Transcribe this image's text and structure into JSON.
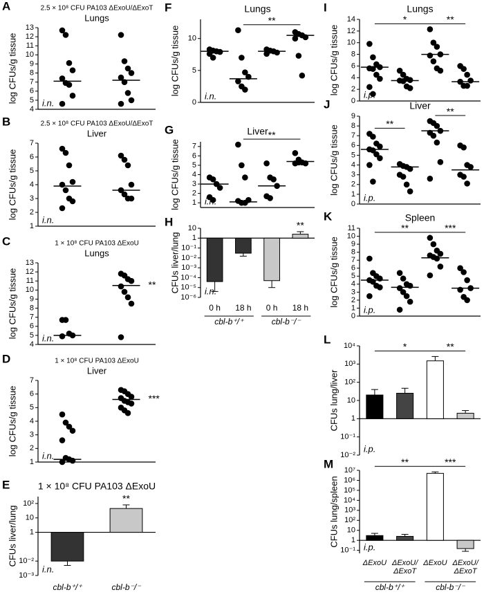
{
  "chart_data": [
    {
      "panel": "A",
      "type": "dot",
      "title": "2.5 × 10⁸ CFU PA103 ΔExoU/ΔExoT",
      "subtitle": "Lungs",
      "ylabel": "log CFUs/g tissue",
      "note": "i.n.",
      "ylim": [
        4,
        13
      ],
      "yticks": [
        4,
        5,
        6,
        7,
        8,
        9,
        10,
        11,
        12,
        13
      ],
      "series": [
        {
          "values": [
            12.7,
            12.2,
            9.1,
            8.3,
            7.4,
            6.9,
            6.7,
            5.5,
            4.6
          ],
          "median": 7.1
        },
        {
          "values": [
            12.2,
            9.3,
            8.5,
            8.0,
            7.5,
            7.0,
            5.8,
            5.0,
            4.6
          ],
          "median": 7.2
        }
      ],
      "annotations": []
    },
    {
      "panel": "B",
      "type": "dot",
      "title": "2.5 × 10⁸ CFU PA103 ΔExoU/ΔExoT",
      "subtitle": "Liver",
      "ylabel": "log CFUs/g tissue",
      "note": "i.n.",
      "ylim": [
        1,
        7
      ],
      "yticks": [
        1,
        2,
        3,
        4,
        5,
        6,
        7
      ],
      "series": [
        {
          "values": [
            6.6,
            6.3,
            5.4,
            4.2,
            4.0,
            3.6,
            3.0,
            2.8,
            2.3
          ],
          "median": 3.9
        },
        {
          "values": [
            6.1,
            5.8,
            5.4,
            4.0,
            3.6,
            3.3,
            3.0,
            3.0
          ],
          "median": 3.6
        }
      ],
      "annotations": []
    },
    {
      "panel": "C",
      "type": "dot",
      "title": "1 × 10⁸ CFU PA103 ΔExoU",
      "subtitle": "Lungs",
      "ylabel": "log CFUs/g tissue",
      "note": "i.n.",
      "ylim": [
        4,
        13
      ],
      "yticks": [
        4,
        5,
        6,
        7,
        8,
        9,
        10,
        11,
        12,
        13
      ],
      "series": [
        {
          "values": [
            6.7,
            6.7,
            5.2,
            5.0,
            4.9
          ],
          "median": 5.0
        },
        {
          "values": [
            11.8,
            11.6,
            11.2,
            11.0,
            10.4,
            9.8,
            9.2,
            8.5,
            4.8
          ],
          "median": 10.5
        }
      ],
      "annotations": [
        "**"
      ]
    },
    {
      "panel": "D",
      "type": "dot",
      "title": "1 × 10⁸ CFU PA103 ΔExoU",
      "subtitle": "Liver",
      "ylabel": "log CFUs/g tissue",
      "note": "i.n.",
      "ylim": [
        1,
        7
      ],
      "yticks": [
        1,
        2,
        3,
        4,
        5,
        6,
        7
      ],
      "series": [
        {
          "values": [
            4.5,
            3.9,
            3.6,
            3.3,
            2.6,
            1.3,
            1.2,
            1.1,
            1.0
          ],
          "median": 1.2
        },
        {
          "values": [
            6.3,
            6.2,
            6.0,
            5.8,
            5.7,
            5.5,
            5.4,
            5.3,
            5.0,
            4.8,
            4.6
          ],
          "median": 5.6
        }
      ],
      "annotations": [
        "***"
      ]
    },
    {
      "panel": "E",
      "type": "bar",
      "title": "1 × 10⁸ CFU PA103 ΔExoU",
      "ylabel": "CFUs liver/lung",
      "note": "i.n.",
      "log": true,
      "ylim": [
        0.001,
        300
      ],
      "yticks": [
        {
          "value": 0.001,
          "label": "10⁻³"
        },
        {
          "value": 0.01,
          "label": "10⁻²"
        },
        1,
        10,
        {
          "value": 100,
          "label": "10²"
        }
      ],
      "categories": [
        "cbl-b⁺/⁺",
        "cbl-b⁻/⁻"
      ],
      "values": [
        0.01,
        45
      ],
      "errors": [
        0.005,
        35
      ],
      "colors": [
        "#333333",
        "#c8c8c8"
      ],
      "annotations": [
        "**"
      ]
    },
    {
      "panel": "F",
      "type": "dot",
      "title": "Lungs",
      "ylabel": "log CFUs/g tissue",
      "note": "i.n.",
      "ylim": [
        0,
        13
      ],
      "yticks": [
        0,
        5,
        10
      ],
      "series": [
        {
          "values": [
            8.3,
            8.1,
            8.0,
            7.9,
            7.6,
            7.0
          ],
          "median": 8.0
        },
        {
          "values": [
            11.3,
            7.0,
            4.7,
            4.0,
            3.3,
            2.5,
            2.0
          ],
          "median": 3.7
        },
        {
          "values": [
            8.3,
            8.1,
            8.0,
            7.8,
            7.6
          ],
          "median": 8.0
        },
        {
          "values": [
            11.0,
            10.7,
            10.5,
            10.2,
            10.0,
            7.3,
            4.2
          ],
          "median": 10.5
        }
      ],
      "annotations": [
        "**"
      ]
    },
    {
      "panel": "G",
      "type": "dot",
      "title": "Liver",
      "ylabel": "log CFUs/g tissue",
      "note": "i.n.",
      "ylim": [
        0.5,
        7.5
      ],
      "yticks": [
        1,
        2,
        3,
        4,
        5,
        6,
        7
      ],
      "series": [
        {
          "values": [
            3.7,
            3.5,
            3.0,
            2.6,
            1.6,
            1.3
          ],
          "median": 3.0
        },
        {
          "values": [
            7.2,
            5.0,
            3.7,
            1.3,
            1.2,
            1.0,
            1.0
          ],
          "median": 1.1
        },
        {
          "values": [
            5.2,
            3.7,
            3.5,
            2.8,
            1.7,
            1.5
          ],
          "median": 2.8
        },
        {
          "values": [
            6.3,
            5.6,
            5.3,
            5.2,
            5.2,
            5.3
          ],
          "median": 5.4
        }
      ],
      "annotations": [
        "**"
      ]
    },
    {
      "panel": "H",
      "type": "bar",
      "ylabel": "CFUs liver/lung",
      "note": "i.n.",
      "log": true,
      "ylim": [
        1e-06,
        10
      ],
      "yticks": [
        {
          "value": 1e-06,
          "label": "10⁻⁶"
        },
        {
          "value": 1e-05,
          "label": "10⁻⁵"
        },
        {
          "value": 0.0001,
          "label": "10⁻⁴"
        },
        {
          "value": 0.001,
          "label": "10⁻³"
        },
        {
          "value": 0.01,
          "label": "10⁻²"
        },
        {
          "value": 0.1,
          "label": "10⁻¹"
        },
        1,
        10
      ],
      "categories": [
        "0 h",
        "18 h",
        "0 h",
        "18 h"
      ],
      "groups": [
        "cbl-b⁺/⁺",
        "cbl-b⁻/⁻"
      ],
      "values": [
        4e-05,
        0.03,
        5e-05,
        2.5
      ],
      "errors": [
        3.6e-05,
        0.015,
        4e-05,
        2
      ],
      "colors": [
        "#333333",
        "#333333",
        "#c8c8c8",
        "#c8c8c8"
      ],
      "annotations": [
        "**"
      ]
    },
    {
      "panel": "I",
      "type": "dot",
      "title": "Lungs",
      "ylabel": "log CFUs/g tissue",
      "note": "i.p.",
      "ylim": [
        0,
        14
      ],
      "yticks": [
        0,
        2,
        4,
        6,
        8,
        10,
        12,
        14
      ],
      "series": [
        {
          "values": [
            9.8,
            7.5,
            6.3,
            5.8,
            5.6,
            5.5,
            4.5,
            3.8,
            2.4,
            1.2
          ],
          "median": 5.8
        },
        {
          "values": [
            5.2,
            4.5,
            3.8,
            3.6,
            3.5,
            3.4,
            2.5,
            2.2
          ],
          "median": 3.5
        },
        {
          "values": [
            12.3,
            10.0,
            9.3,
            8.0,
            7.8,
            6.8,
            5.6,
            5.2
          ],
          "median": 8.0
        },
        {
          "values": [
            6.0,
            5.5,
            4.5,
            3.5,
            3.3,
            2.6,
            2.6
          ],
          "median": 3.3
        }
      ],
      "annotations": [
        "*",
        "**"
      ]
    },
    {
      "panel": "J",
      "type": "dot",
      "title": "Liver",
      "ylabel": "log CFUs/g tissue",
      "note": "i.p.",
      "ylim": [
        0,
        9
      ],
      "yticks": [
        0,
        1,
        2,
        3,
        4,
        5,
        6,
        7,
        8,
        9
      ],
      "series": [
        {
          "values": [
            7.2,
            6.9,
            6.2,
            5.9,
            5.6,
            5.5,
            5.1,
            4.7,
            4.0,
            2.3
          ],
          "median": 5.6
        },
        {
          "values": [
            4.1,
            3.9,
            3.8,
            3.6,
            3.0,
            2.8,
            2.0,
            1.3
          ],
          "median": 3.8
        },
        {
          "values": [
            8.5,
            8.3,
            8.0,
            7.5,
            7.3,
            7.0,
            6.3,
            4.3,
            2.6
          ],
          "median": 7.5
        },
        {
          "values": [
            6.0,
            5.8,
            4.0,
            3.8,
            3.0,
            2.8,
            2.1
          ],
          "median": 3.5
        }
      ],
      "annotations": [
        "**",
        "**"
      ]
    },
    {
      "panel": "K",
      "type": "dot",
      "title": "Spleen",
      "ylabel": "log CFUs/g tissue",
      "note": "i.p.",
      "ylim": [
        0,
        11
      ],
      "yticks": [
        0,
        1,
        2,
        3,
        4,
        5,
        6,
        7,
        8,
        9,
        10,
        11
      ],
      "series": [
        {
          "values": [
            7.2,
            5.4,
            5.0,
            4.7,
            4.5,
            4.3,
            3.8,
            3.6,
            2.5
          ],
          "median": 4.5
        },
        {
          "values": [
            5.4,
            4.7,
            4.0,
            3.8,
            3.5,
            3.0,
            2.5,
            1.8,
            0.8
          ],
          "median": 3.6
        },
        {
          "values": [
            9.8,
            9.0,
            8.2,
            7.8,
            7.6,
            7.4,
            7.2,
            6.2,
            5.1
          ],
          "median": 7.3
        },
        {
          "values": [
            6.0,
            5.5,
            4.5,
            3.5,
            3.3,
            2.4,
            2.0
          ],
          "median": 3.5
        }
      ],
      "annotations": [
        "**",
        "***"
      ]
    },
    {
      "panel": "L",
      "type": "bar",
      "ylabel": "CFUs lung/liver",
      "note": "i.p.",
      "log": true,
      "ylim": [
        0.01,
        10000
      ],
      "yticks": [
        {
          "value": 0.01,
          "label": "10⁻²"
        },
        {
          "value": 0.1,
          "label": "10⁻¹"
        },
        1,
        10,
        {
          "value": 100,
          "label": "10²"
        },
        {
          "value": 1000,
          "label": "10³"
        },
        {
          "value": 10000,
          "label": "10⁴"
        }
      ],
      "values": [
        20,
        25,
        1500,
        2
      ],
      "errors": [
        20,
        22,
        1100,
        0.8
      ],
      "colors": [
        "#000000",
        "#444444",
        "#ffffff",
        "#c8c8c8"
      ],
      "annotations": [
        "*",
        "**"
      ]
    },
    {
      "panel": "M",
      "type": "bar",
      "ylabel": "CFUs lung/spleen",
      "note": "i.p.",
      "log": true,
      "ylim": [
        0.05,
        10000000
      ],
      "yticks": [
        {
          "value": 0.1,
          "label": "10⁻¹"
        },
        1,
        10,
        {
          "value": 100,
          "label": "10²"
        },
        {
          "value": 1000,
          "label": "10³"
        },
        {
          "value": 10000,
          "label": "10⁴"
        },
        {
          "value": 100000,
          "label": "10⁵"
        },
        {
          "value": 1000000,
          "label": "10⁶"
        },
        {
          "value": 10000000,
          "label": "10⁷"
        }
      ],
      "categories": [
        "ΔExoU",
        "ΔExoU/ ΔExoT",
        "ΔExoU",
        "ΔExoU/ ΔExoT"
      ],
      "groups": [
        "cbl-b⁺/⁺",
        "cbl-b⁻/⁻"
      ],
      "values": [
        3,
        2.5,
        5000000,
        0.15
      ],
      "errors": [
        2,
        1.5,
        2000000,
        0.07
      ],
      "colors": [
        "#000000",
        "#444444",
        "#ffffff",
        "#c8c8c8"
      ],
      "annotations": [
        "**",
        "***"
      ]
    }
  ]
}
